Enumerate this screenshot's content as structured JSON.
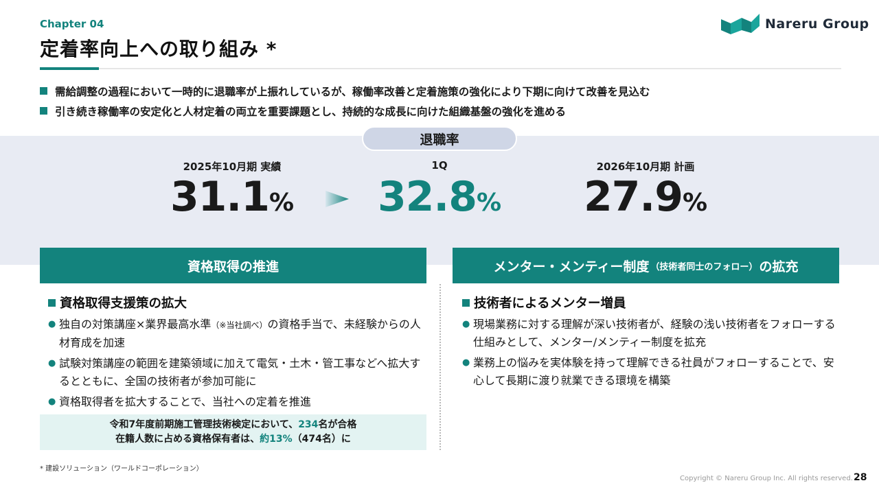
{
  "header": {
    "chapter": "Chapter 04",
    "title": "定着率向上への取り組み *",
    "logo_text": "Nareru Group"
  },
  "bullets": [
    "需給調整の過程において一時的に退職率が上振れしているが、稼働率改善と定着施策の強化により下期に向けて改善を見込む",
    "引き続き稼働率の安定化と人材定着の両立を重要課題とし、持続的な成長に向けた組織基盤の強化を進める"
  ],
  "retention": {
    "pill": "退職率",
    "metrics": [
      {
        "label": "2025年10月期 実績",
        "value": "31.1",
        "unit": "%"
      },
      {
        "label": "1Q",
        "value": "32.8",
        "unit": "%"
      },
      {
        "label": "2026年10月期 計画",
        "value": "27.9",
        "unit": "%"
      }
    ]
  },
  "left_panel": {
    "header": "資格取得の推進",
    "subheading": "資格取得支援策の拡大",
    "items": [
      {
        "pre": "独自の対策講座×業界最高水準",
        "note": "（※当社調べ）",
        "post": "の資格手当で、未経験からの人材育成を加速"
      },
      {
        "text": "試験対策講座の範囲を建築領域に加えて電気・土木・管工事などへ拡大するとともに、全国の技術者が参加可能に"
      },
      {
        "text": "資格取得者を拡大することで、当社への定着を推進"
      }
    ],
    "callout": {
      "line1_a": "令和7年度前期施工管理技術検定において、",
      "line1_num": "234",
      "line1_b": "名が合格",
      "line2_a": "在籍人数に占める資格保有者は、",
      "line2_num": "約13%",
      "line2_b": "（474名）に"
    }
  },
  "right_panel": {
    "header_a": "メンター・メンティー制度",
    "header_note": "（技術者同士のフォロー）",
    "header_b": "の拡充",
    "subheading": "技術者によるメンター増員",
    "items": [
      "現場業務に対する理解が深い技術者が、経験の浅い技術者をフォローする仕組みとして、メンター/メンティー制度を拡充",
      "業務上の悩みを実体験を持って理解できる社員がフォローすることで、安心して長期に渡り就業できる環境を構築"
    ]
  },
  "footer": {
    "footnote": "* 建設ソリューション（ワールドコーポレーション）",
    "copyright": "Copyright © Nareru Group Inc. All rights reserved.",
    "page": "28"
  },
  "colors": {
    "accent": "#13837d",
    "band": "#e8ebf3",
    "pill": "#cfd6e6"
  }
}
